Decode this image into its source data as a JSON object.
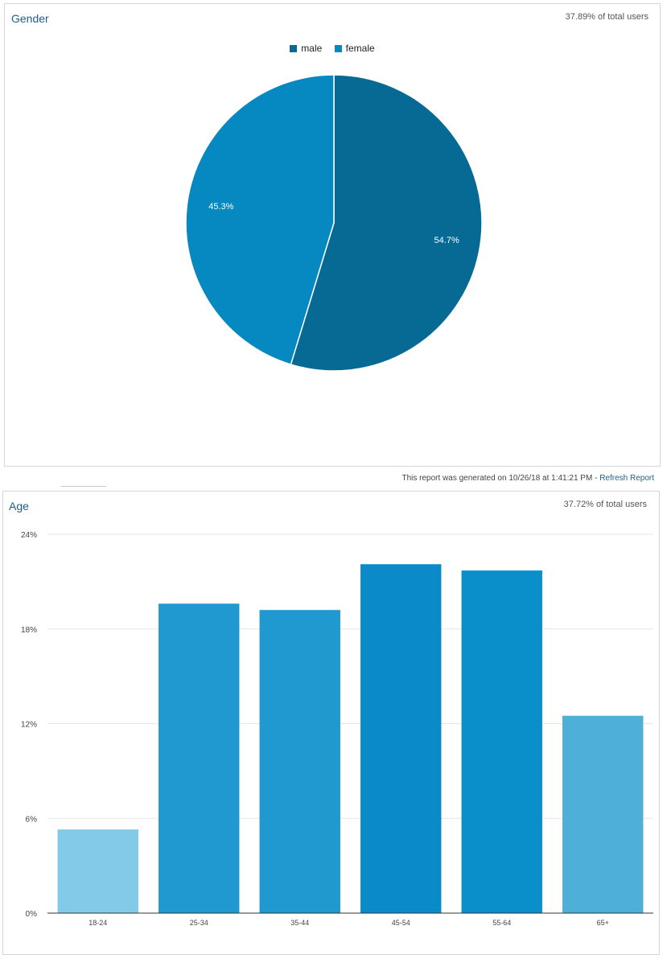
{
  "report_footer": {
    "generated_text": "This report was generated on 10/26/18 at 1:41:21 PM - ",
    "refresh_label": "Refresh Report"
  },
  "gender": {
    "title": "Gender",
    "share_text": "37.89% of total users",
    "legend": [
      {
        "label": "male",
        "color": "#066a94"
      },
      {
        "label": "female",
        "color": "#0688c0"
      }
    ],
    "chart_data": {
      "type": "pie",
      "title": "Gender",
      "slices": [
        {
          "label": "male",
          "value": 54.7,
          "display": "54.7%",
          "color": "#066a94"
        },
        {
          "label": "female",
          "value": 45.3,
          "display": "45.3%",
          "color": "#0688c0"
        }
      ],
      "legend_position": "top-center"
    }
  },
  "age": {
    "title": "Age",
    "share_text": "37.72% of total users",
    "chart_data": {
      "type": "bar",
      "title": "Age",
      "categories": [
        "18-24",
        "25-34",
        "35-44",
        "45-54",
        "55-64",
        "65+"
      ],
      "values": [
        5.3,
        19.6,
        19.2,
        22.1,
        21.7,
        12.5
      ],
      "colors": [
        "#83c9e8",
        "#1f99cf",
        "#1f99cf",
        "#0a8ac8",
        "#0a8fca",
        "#4eafd9"
      ],
      "ylim": [
        0,
        24
      ],
      "yticks": [
        0,
        6,
        12,
        18,
        24
      ],
      "ytick_labels": [
        "0%",
        "6%",
        "12%",
        "18%",
        "24%"
      ],
      "grid": true
    }
  }
}
